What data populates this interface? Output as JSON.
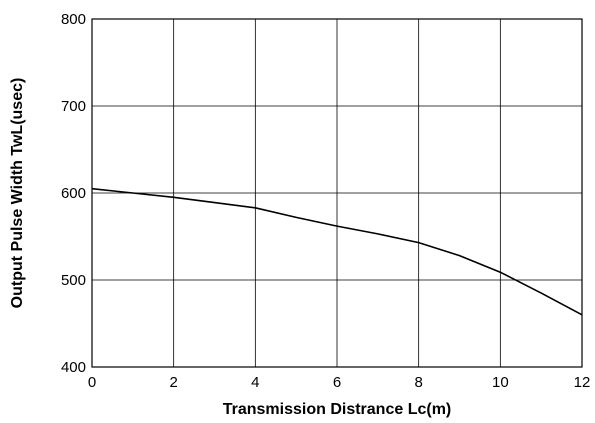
{
  "chart_data": {
    "type": "line",
    "title": "",
    "xlabel": "Transmission Distrance Lc(m)",
    "ylabel": "Output Pulse Width TwL(usec)",
    "xlim": [
      0,
      12
    ],
    "ylim": [
      400,
      800
    ],
    "x_ticks": [
      0,
      2,
      4,
      6,
      8,
      10,
      12
    ],
    "y_ticks": [
      400,
      500,
      600,
      700,
      800
    ],
    "x_tick_labels": [
      "0",
      "2",
      "4",
      "6",
      "8",
      "10",
      "12"
    ],
    "y_tick_labels": [
      "400",
      "500",
      "600",
      "700",
      "800"
    ],
    "grid": true,
    "legend": "none",
    "series": [
      {
        "x": [
          0,
          1,
          2,
          3,
          4,
          5,
          6,
          7,
          8,
          9,
          10,
          11,
          12
        ],
        "y": [
          605,
          600,
          595,
          589,
          583,
          572,
          562,
          553,
          543,
          528,
          509,
          485,
          460
        ],
        "color": "#000000"
      }
    ]
  }
}
